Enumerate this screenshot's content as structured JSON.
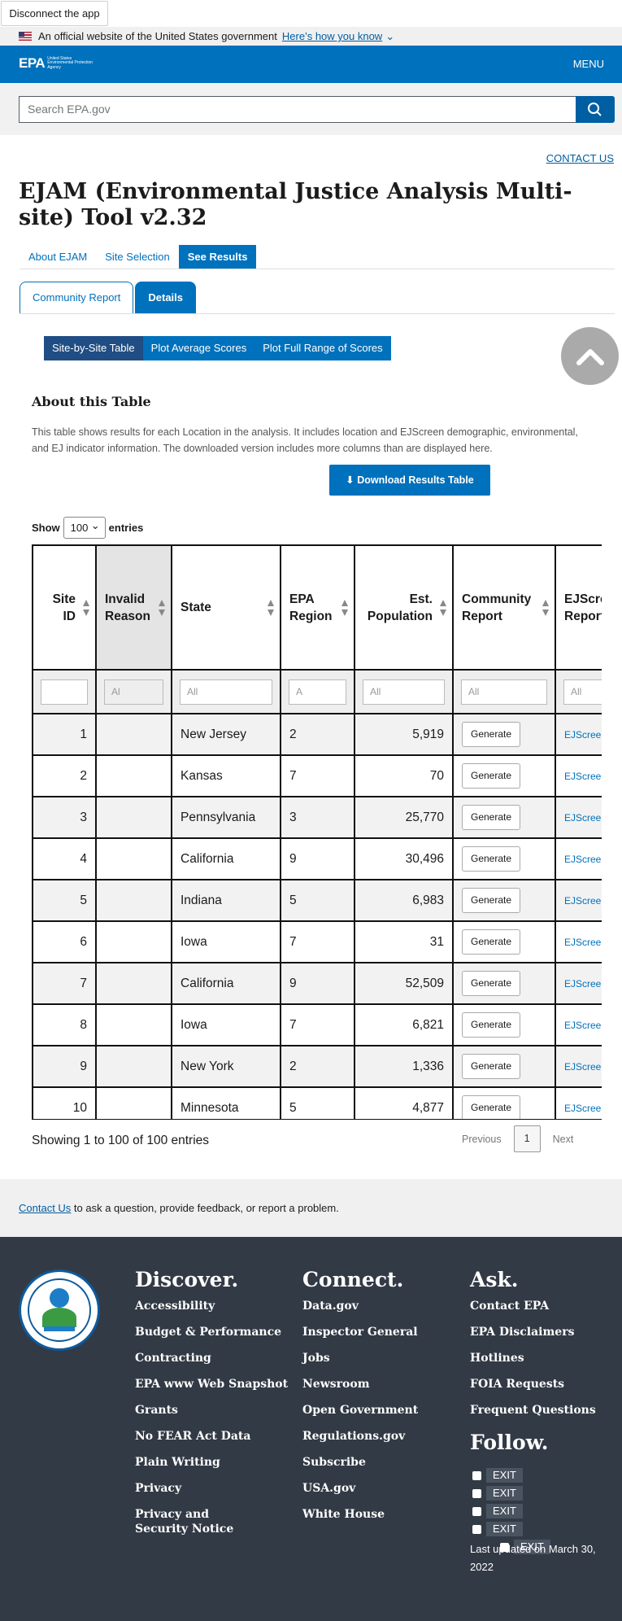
{
  "disconnect_label": "Disconnect the app",
  "gov_banner": {
    "text": "An official website of the United States government",
    "link": "Here’s how you know"
  },
  "header": {
    "logo": "EPA",
    "logo_sub": "United States Environmental Protection Agency",
    "menu": "MENU"
  },
  "search": {
    "placeholder": "Search EPA.gov"
  },
  "contact_us_top": "CONTACT US",
  "page_title": "EJAM (Environmental Justice Analysis Multi-site) Tool v2.32",
  "main_tabs": [
    {
      "label": "About EJAM"
    },
    {
      "label": "Site Selection"
    },
    {
      "label": "See Results"
    }
  ],
  "sub_tabs": [
    {
      "label": "Community Report"
    },
    {
      "label": "Details"
    }
  ],
  "view_pills": [
    {
      "label": "Site-by-Site Table"
    },
    {
      "label": "Plot Average Scores"
    },
    {
      "label": "Plot Full Range of Scores"
    }
  ],
  "about": {
    "title": "About this Table",
    "text": "This table shows results for each Location in the analysis. It includes location and EJScreen demographic, environmental, and EJ indicator information. The downloaded version includes more columns than are displayed here.",
    "download_label": "Download Results Table"
  },
  "entries": {
    "show": "Show",
    "value": "100",
    "suffix": "entries"
  },
  "table": {
    "headers": {
      "site_id": "Site ID",
      "invalid_reason": "Invalid Reason",
      "state": "State",
      "epa_region": "EPA Region",
      "est_population": "Est. Population",
      "community_report": "Community Report",
      "ejscreen_report": "EJScreen Report"
    },
    "filters": {
      "invalid_reason": "Al",
      "state": "All",
      "epa_region": "A",
      "est_population": "All",
      "community_report": "All",
      "ejscreen_report": "All"
    },
    "rows": [
      {
        "id": "1",
        "reason": "",
        "state": "New Jersey",
        "region": "2",
        "pop": "5,919",
        "gen": "Generate",
        "ej": "EJScreen"
      },
      {
        "id": "2",
        "reason": "",
        "state": "Kansas",
        "region": "7",
        "pop": "70",
        "gen": "Generate",
        "ej": "EJScreen"
      },
      {
        "id": "3",
        "reason": "",
        "state": "Pennsylvania",
        "region": "3",
        "pop": "25,770",
        "gen": "Generate",
        "ej": "EJScreen"
      },
      {
        "id": "4",
        "reason": "",
        "state": "California",
        "region": "9",
        "pop": "30,496",
        "gen": "Generate",
        "ej": "EJScreen"
      },
      {
        "id": "5",
        "reason": "",
        "state": "Indiana",
        "region": "5",
        "pop": "6,983",
        "gen": "Generate",
        "ej": "EJScreen"
      },
      {
        "id": "6",
        "reason": "",
        "state": "Iowa",
        "region": "7",
        "pop": "31",
        "gen": "Generate",
        "ej": "EJScreen"
      },
      {
        "id": "7",
        "reason": "",
        "state": "California",
        "region": "9",
        "pop": "52,509",
        "gen": "Generate",
        "ej": "EJScreen"
      },
      {
        "id": "8",
        "reason": "",
        "state": "Iowa",
        "region": "7",
        "pop": "6,821",
        "gen": "Generate",
        "ej": "EJScreen"
      },
      {
        "id": "9",
        "reason": "",
        "state": "New York",
        "region": "2",
        "pop": "1,336",
        "gen": "Generate",
        "ej": "EJScreen"
      },
      {
        "id": "10",
        "reason": "",
        "state": "Minnesota",
        "region": "5",
        "pop": "4,877",
        "gen": "Generate",
        "ej": "EJScreen"
      }
    ]
  },
  "pagination": {
    "showing": "Showing 1 to 100 of 100 entries",
    "previous": "Previous",
    "page": "1",
    "next": "Next"
  },
  "contact_band": {
    "link": "Contact Us",
    "text": " to ask a question, provide feedback, or report a problem."
  },
  "footer": {
    "discover": {
      "title": "Discover.",
      "links": [
        "Accessibility",
        "Budget & Performance",
        "Contracting",
        "EPA www Web Snapshot",
        "Grants",
        "No FEAR Act Data",
        "Plain Writing",
        "Privacy",
        "Privacy and Security Notice"
      ]
    },
    "connect": {
      "title": "Connect.",
      "links": [
        "Data.gov",
        "Inspector General",
        "Jobs",
        "Newsroom",
        "Open Government",
        "Regulations.gov",
        "Subscribe",
        "USA.gov",
        "White House"
      ]
    },
    "ask": {
      "title": "Ask.",
      "links": [
        "Contact EPA",
        "EPA Disclaimers",
        "Hotlines",
        "FOIA Requests",
        "Frequent Questions"
      ]
    },
    "follow": {
      "title": "Follow.",
      "exit": "EXIT"
    },
    "updated": "Last updated on March 30, 2022"
  }
}
